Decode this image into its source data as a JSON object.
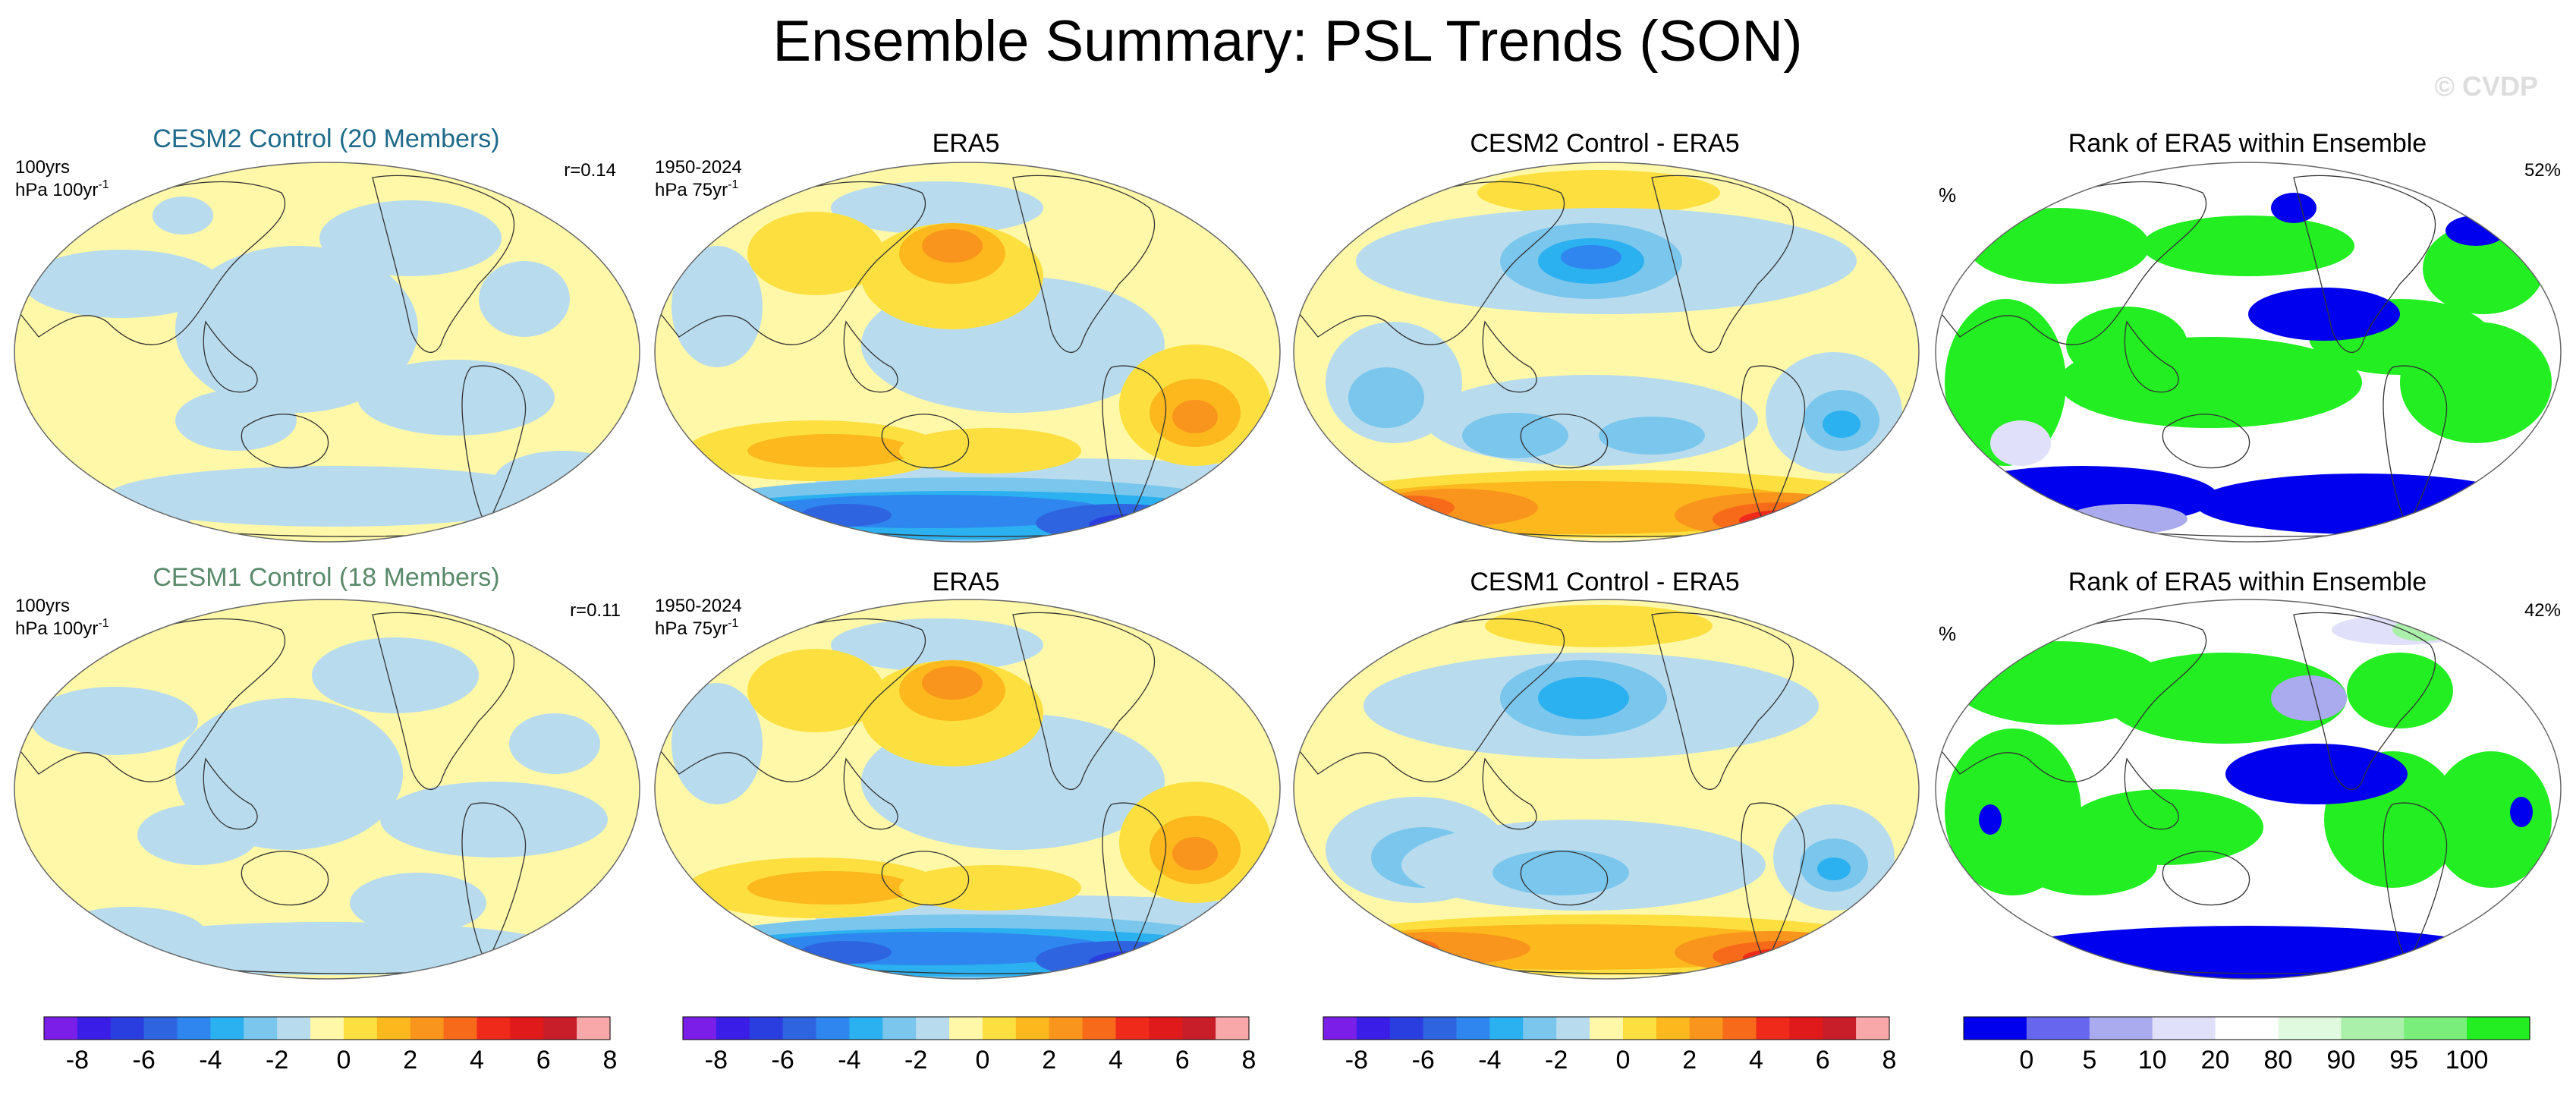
{
  "title": "Ensemble Summary: PSL Trends (SON)",
  "watermark": "© CVDP",
  "rows": [
    {
      "model": {
        "title": "CESM2 Control (20 Members)",
        "title_color": "#1f6a8a",
        "left_line1": "100yrs",
        "left_line2": "hPa 100yr",
        "left_sup": "-1",
        "right": "r=0.14"
      },
      "era5": {
        "title": "ERA5",
        "left_line1": "1950-2024",
        "left_line2": "hPa 75yr",
        "left_sup": "-1"
      },
      "diff": {
        "title": "CESM2 Control - ERA5"
      },
      "rank": {
        "title": "Rank of ERA5 within Ensemble",
        "left_unit": "%",
        "right": "52%"
      }
    },
    {
      "model": {
        "title": "CESM1 Control (18 Members)",
        "title_color": "#5a8a6a",
        "left_line1": "100yrs",
        "left_line2": "hPa 100yr",
        "left_sup": "-1",
        "right": "r=0.11"
      },
      "era5": {
        "title": "ERA5",
        "left_line1": "1950-2024",
        "left_line2": "hPa 75yr",
        "left_sup": "-1"
      },
      "diff": {
        "title": "CESM1 Control - ERA5"
      },
      "rank": {
        "title": "Rank of ERA5 within Ensemble",
        "left_unit": "%",
        "right": "42%"
      }
    }
  ],
  "chart_data": [
    {
      "type": "contour-map",
      "colorbar": {
        "colors": [
          "#7a1ee8",
          "#3a1ee8",
          "#2a3ee0",
          "#2f64e0",
          "#2e86ee",
          "#2bb0f0",
          "#7ac6ec",
          "#b8dcee",
          "#fff8a8",
          "#fde040",
          "#fcb81c",
          "#f9941c",
          "#f66a1a",
          "#ef2a1a",
          "#e01a1a",
          "#c81e2a",
          "#f8a8a8"
        ],
        "ticks": [
          "-8",
          "-6",
          "-4",
          "-2",
          "0",
          "2",
          "4",
          "6",
          "8"
        ]
      }
    },
    {
      "type": "rank-map",
      "colorbar": {
        "colors": [
          "#0000ee",
          "#6666ee",
          "#aaaaee",
          "#e0e0fa",
          "#ffffff",
          "#e0fae0",
          "#aaf0aa",
          "#7aee7a",
          "#22ee22"
        ],
        "ticks": [
          "0",
          "5",
          "10",
          "20",
          "80",
          "90",
          "95",
          "100"
        ]
      }
    }
  ]
}
